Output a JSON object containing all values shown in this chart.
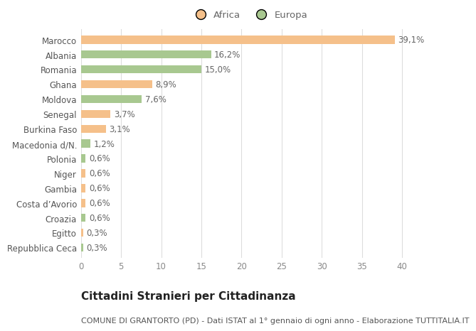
{
  "categories": [
    "Marocco",
    "Albania",
    "Romania",
    "Ghana",
    "Moldova",
    "Senegal",
    "Burkina Faso",
    "Macedonia d/N.",
    "Polonia",
    "Niger",
    "Gambia",
    "Costa d’Avorio",
    "Croazia",
    "Egitto",
    "Repubblica Ceca"
  ],
  "values": [
    39.1,
    16.2,
    15.0,
    8.9,
    7.6,
    3.7,
    3.1,
    1.2,
    0.6,
    0.6,
    0.6,
    0.6,
    0.6,
    0.3,
    0.3
  ],
  "colors": [
    "#f5c08a",
    "#a8c890",
    "#a8c890",
    "#f5c08a",
    "#a8c890",
    "#f5c08a",
    "#f5c08a",
    "#a8c890",
    "#a8c890",
    "#f5c08a",
    "#f5c08a",
    "#f5c08a",
    "#a8c890",
    "#f5c08a",
    "#a8c890"
  ],
  "labels": [
    "39,1%",
    "16,2%",
    "15,0%",
    "8,9%",
    "7,6%",
    "3,7%",
    "3,1%",
    "1,2%",
    "0,6%",
    "0,6%",
    "0,6%",
    "0,6%",
    "0,6%",
    "0,3%",
    "0,3%"
  ],
  "xlim": [
    0,
    42
  ],
  "xticks": [
    0,
    5,
    10,
    15,
    20,
    25,
    30,
    35,
    40
  ],
  "legend_africa_color": "#f5c08a",
  "legend_europa_color": "#a8c890",
  "title": "Cittadini Stranieri per Cittadinanza",
  "subtitle": "COMUNE DI GRANTORTO (PD) - Dati ISTAT al 1° gennaio di ogni anno - Elaborazione TUTTITALIA.IT",
  "bg_color": "#ffffff",
  "grid_color": "#dddddd",
  "bar_height": 0.55,
  "label_fontsize": 8.5,
  "tick_fontsize": 8.5,
  "title_fontsize": 11,
  "subtitle_fontsize": 8
}
